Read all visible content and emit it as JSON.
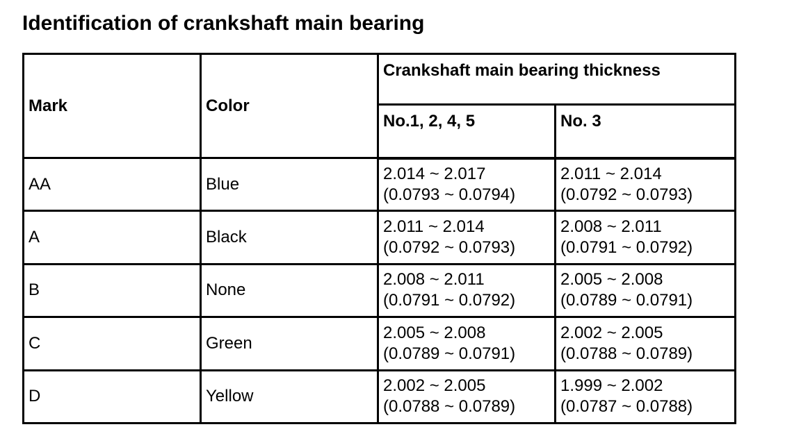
{
  "title": "Identification of crankshaft main bearing",
  "table": {
    "headers": {
      "mark": "Mark",
      "color": "Color",
      "thickness_group": "Crankshaft main bearing thickness",
      "journals_1245": "No.1, 2, 4, 5",
      "journal_3": "No. 3"
    },
    "rows": [
      {
        "mark": "AA",
        "color": "Blue",
        "no1245_mm": "2.014 ~ 2.017",
        "no1245_in": "(0.0793 ~ 0.0794)",
        "no3_mm": "2.011 ~ 2.014",
        "no3_in": "(0.0792 ~ 0.0793)"
      },
      {
        "mark": "A",
        "color": "Black",
        "no1245_mm": "2.011 ~ 2.014",
        "no1245_in": "(0.0792 ~ 0.0793)",
        "no3_mm": "2.008 ~ 2.011",
        "no3_in": "(0.0791 ~ 0.0792)"
      },
      {
        "mark": "B",
        "color": "None",
        "no1245_mm": "2.008 ~ 2.011",
        "no1245_in": "(0.0791 ~ 0.0792)",
        "no3_mm": "2.005 ~ 2.008",
        "no3_in": "(0.0789 ~ 0.0791)"
      },
      {
        "mark": "C",
        "color": "Green",
        "no1245_mm": "2.005 ~ 2.008",
        "no1245_in": "(0.0789 ~ 0.0791)",
        "no3_mm": "2.002 ~ 2.005",
        "no3_in": "(0.0788 ~ 0.0789)"
      },
      {
        "mark": "D",
        "color": "Yellow",
        "no1245_mm": "2.002 ~ 2.005",
        "no1245_in": "(0.0788 ~ 0.0789)",
        "no3_mm": "1.999 ~ 2.002",
        "no3_in": "(0.0787 ~ 0.0788)"
      }
    ]
  }
}
